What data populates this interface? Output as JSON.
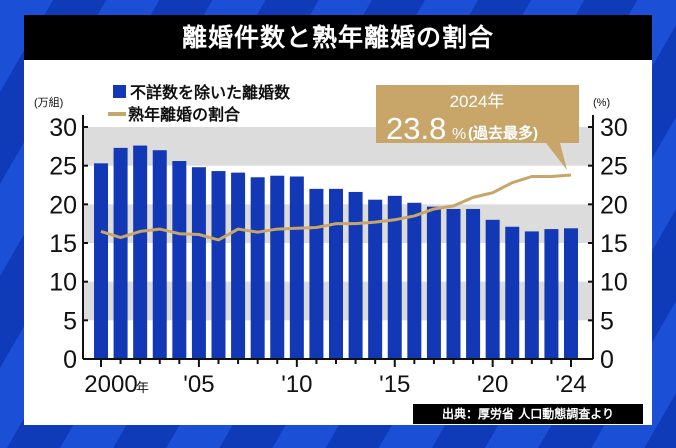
{
  "title": "離婚件数と熟年離婚の割合",
  "source": "出典：厚労省 人口動態調査より",
  "chart_data": {
    "type": "bar+line",
    "categories": [
      2000,
      2001,
      2002,
      2003,
      2004,
      2005,
      2006,
      2007,
      2008,
      2009,
      2010,
      2011,
      2012,
      2013,
      2014,
      2015,
      2016,
      2017,
      2018,
      2019,
      2020,
      2021,
      2022,
      2023,
      2024
    ],
    "x_tick_labels": [
      {
        "year": 2000,
        "label": "2000",
        "suffix": "年"
      },
      {
        "year": 2005,
        "label": "'05"
      },
      {
        "year": 2010,
        "label": "'10"
      },
      {
        "year": 2015,
        "label": "'15"
      },
      {
        "year": 2020,
        "label": "'20"
      },
      {
        "year": 2024,
        "label": "'24"
      }
    ],
    "series": [
      {
        "name": "不詳数を除いた離婚数",
        "type": "bar",
        "axis": "left",
        "color": "#1238b5",
        "values": [
          25.3,
          27.3,
          27.6,
          27.0,
          25.6,
          24.8,
          24.3,
          24.1,
          23.5,
          23.7,
          23.6,
          22.0,
          22.0,
          21.6,
          20.6,
          21.1,
          20.2,
          19.7,
          19.4,
          19.4,
          18.0,
          17.1,
          16.5,
          16.8,
          16.9
        ]
      },
      {
        "name": "熟年離婚の割合",
        "type": "line",
        "axis": "right",
        "color": "#c8a66a",
        "values": [
          16.5,
          15.7,
          16.5,
          16.8,
          16.2,
          16.1,
          15.4,
          16.8,
          16.4,
          16.8,
          16.9,
          17.0,
          17.5,
          17.5,
          17.7,
          18.0,
          18.5,
          19.4,
          19.8,
          20.9,
          21.5,
          22.8,
          23.6,
          23.6,
          23.8
        ]
      }
    ],
    "y_left": {
      "unit": "(万組)",
      "ylim": [
        0,
        30
      ],
      "ticks": [
        0,
        5,
        10,
        15,
        20,
        25,
        30
      ]
    },
    "y_right": {
      "unit": "(%)",
      "ylim": [
        0,
        30
      ],
      "ticks": [
        0,
        5,
        10,
        15,
        20,
        25,
        30
      ]
    },
    "grid_bands": [
      [
        5,
        10
      ],
      [
        15,
        20
      ],
      [
        25,
        30
      ]
    ],
    "legend_position": "top-left",
    "annotation": {
      "line1": "2024年",
      "value": "23.8",
      "unit": "%",
      "note": "(過去最多)",
      "color": "#c8a66a"
    }
  }
}
